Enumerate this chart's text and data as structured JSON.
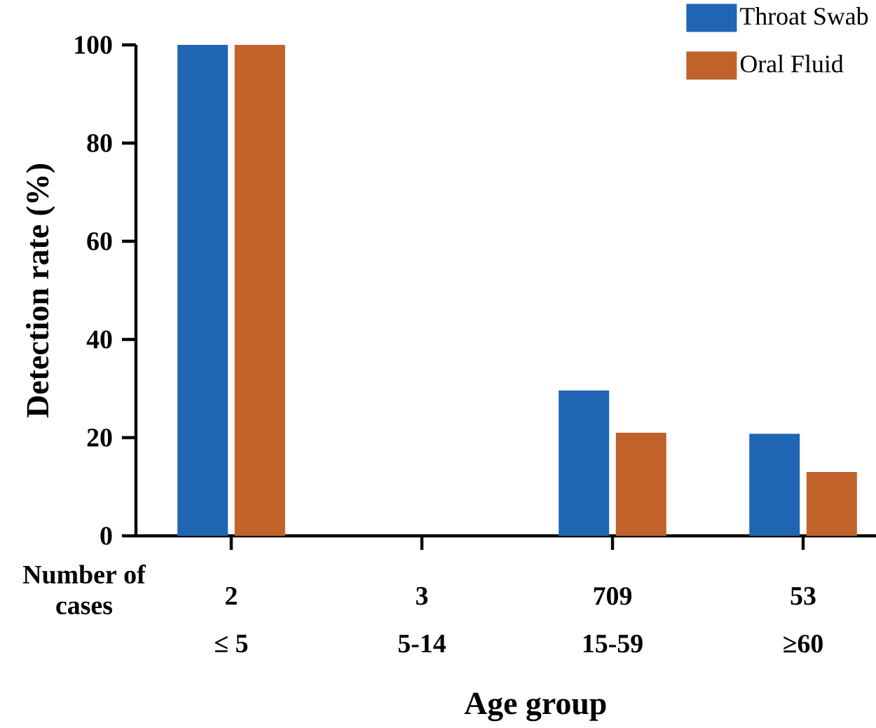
{
  "chart_data": {
    "type": "bar",
    "xlabel": "Age group",
    "ylabel": "Detection rate (%)",
    "categories": [
      "≤ 5",
      "5-14",
      "15-59",
      "≥60"
    ],
    "series": [
      {
        "name": "Throat Swab",
        "color": "#1f65b4",
        "values": [
          100,
          0,
          29.6,
          20.8
        ]
      },
      {
        "name": "Oral Fluid",
        "color": "#c0622a",
        "values": [
          100,
          0,
          21.0,
          13.0
        ]
      }
    ],
    "annotations": [
      "Number of cases",
      "2",
      "3",
      "709",
      "53"
    ],
    "ylim": [
      0,
      100
    ],
    "yticks": [
      0,
      20,
      40,
      60,
      80,
      100
    ],
    "legend": "top right"
  }
}
